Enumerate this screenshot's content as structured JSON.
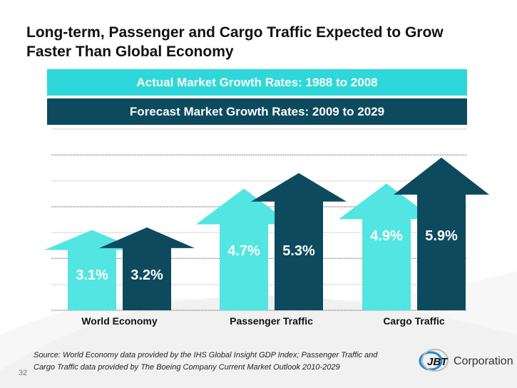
{
  "title_line1": "Long-term, Passenger and Cargo Traffic Expected to Grow",
  "title_line2": "Faster Than Global Economy",
  "page_number": "32",
  "source_line1": "Source: World Economy data provided by the IHS Global Insight  GDP Index; Passenger Traffic and",
  "source_line2": "Cargo Traffic data provided by The Boeing Company Current Market Outlook 2010-2029",
  "logo": {
    "mark": "JBT",
    "text": "Corporation"
  },
  "colors": {
    "actual": "#52e5e2",
    "forecast": "#0d4a5e",
    "banner_actual": "#2ed7d9"
  },
  "chart_data": {
    "type": "bar",
    "title": "",
    "categories": [
      "World Economy",
      "Passenger Traffic",
      "Cargo Traffic"
    ],
    "series": [
      {
        "name": "Actual Market Growth Rates:  1988 to 2008",
        "values": [
          3.1,
          4.7,
          4.9
        ],
        "labels": [
          "3.1%",
          "4.7%",
          "4.9%"
        ]
      },
      {
        "name": "Forecast Market Growth Rates: 2009 to 2029",
        "values": [
          3.2,
          5.3,
          5.9
        ],
        "labels": [
          "3.2%",
          "5.3%",
          "5.9%"
        ]
      }
    ],
    "ylim": [
      0,
      7
    ],
    "grid": true,
    "legend": "top",
    "xlabel": "",
    "ylabel": ""
  }
}
